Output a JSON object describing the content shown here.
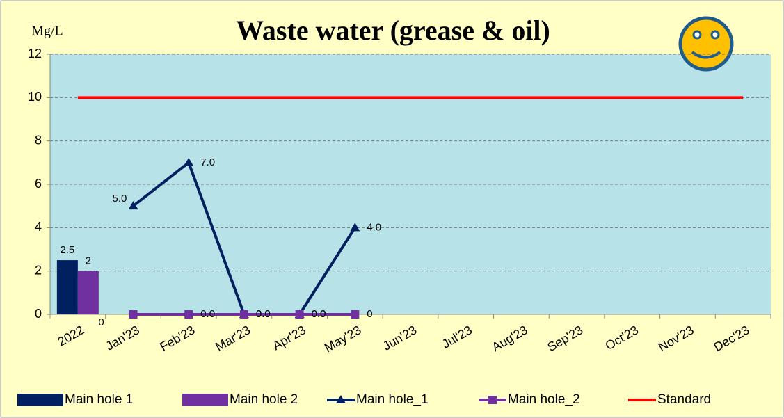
{
  "chart_data": {
    "type": "combo",
    "title": "Waste water (grease & oil)",
    "y_label": "Mg/L",
    "categories": [
      "2022",
      "Jan'23",
      "Feb'23",
      "Mar'23",
      "Apr'23",
      "May'23",
      "Jun'23",
      "Jul'23",
      "Aug'23",
      "Sep'23",
      "Oct'23",
      "Nov'23",
      "Dec'23"
    ],
    "ylim": [
      0,
      12
    ],
    "yticks": [
      0,
      2,
      4,
      6,
      8,
      10,
      12
    ],
    "grid": true,
    "series": [
      {
        "name": "Main hole 1",
        "type": "bar",
        "color": "#002060",
        "values": [
          2.5,
          0,
          null,
          null,
          null,
          null,
          null,
          null,
          null,
          null,
          null,
          null,
          null
        ],
        "value_labels": [
          "2.5",
          "0",
          null,
          null,
          null,
          null,
          null,
          null,
          null,
          null,
          null,
          null,
          null
        ]
      },
      {
        "name": "Main hole 2",
        "type": "bar",
        "color": "#7030a0",
        "values": [
          2,
          null,
          null,
          null,
          null,
          null,
          null,
          null,
          null,
          null,
          null,
          null,
          null
        ],
        "value_labels": [
          "2",
          null,
          null,
          null,
          null,
          null,
          null,
          null,
          null,
          null,
          null,
          null,
          null
        ]
      },
      {
        "name": "Main hole_1",
        "type": "line",
        "marker": "triangle",
        "color": "#002060",
        "values": [
          null,
          5,
          7,
          0,
          0,
          4,
          null,
          null,
          null,
          null,
          null,
          null,
          null
        ],
        "value_labels": [
          null,
          "5.0",
          "7.0",
          "0.0",
          "0.0",
          "4.0",
          null,
          null,
          null,
          null,
          null,
          null,
          null
        ]
      },
      {
        "name": "Main hole_2",
        "type": "line",
        "marker": "square",
        "color": "#7030a0",
        "values": [
          null,
          0,
          0,
          0,
          0,
          0,
          null,
          null,
          null,
          null,
          null,
          null,
          null
        ],
        "value_labels": [
          null,
          null,
          "0.0",
          "0.0",
          "0.0",
          "0",
          null,
          null,
          null,
          null,
          null,
          null,
          null
        ]
      },
      {
        "name": "Standard",
        "type": "line",
        "marker": "none",
        "color": "#ff0000",
        "values": [
          10,
          10,
          10,
          10,
          10,
          10,
          10,
          10,
          10,
          10,
          10,
          10,
          10
        ]
      }
    ]
  }
}
